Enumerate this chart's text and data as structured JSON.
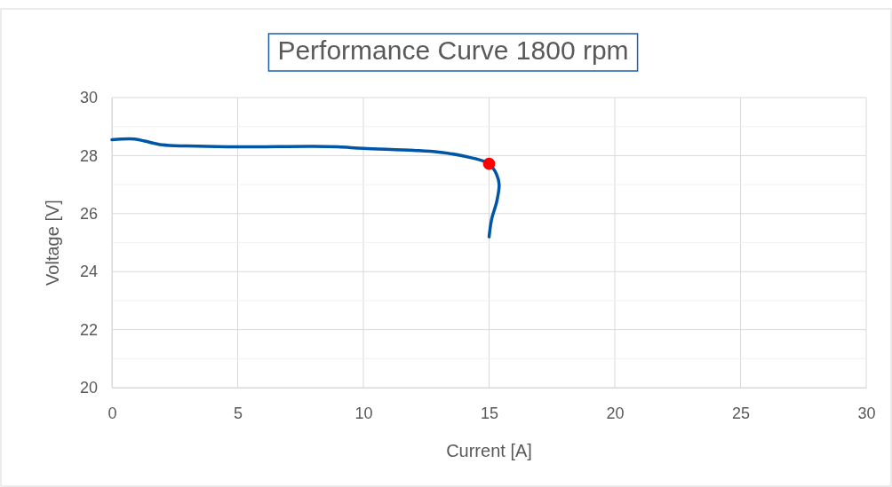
{
  "chart_data": {
    "type": "line",
    "title": "Performance Curve 1800 rpm",
    "xlabel": "Current [A]",
    "ylabel": "Voltage [V]",
    "xlim": [
      0,
      30
    ],
    "xticks": [
      0,
      5,
      10,
      15,
      20,
      25,
      30
    ],
    "ylim": [
      20,
      30
    ],
    "yticks": [
      20,
      {
        "value": 21,
        "label": null
      },
      22,
      {
        "value": 23,
        "label": null
      },
      24,
      {
        "value": 25,
        "label": null
      },
      26,
      {
        "value": 27,
        "label": null
      },
      28,
      {
        "value": 29,
        "label": null
      },
      30
    ],
    "grid": true,
    "series": [
      {
        "color": "#0056a6",
        "marker": "none",
        "line_style": "solid",
        "x": [
          0,
          0.9,
          1.3,
          2,
          3,
          5,
          8,
          9,
          10,
          12,
          13,
          14,
          15,
          15.3,
          15.4,
          15.3,
          15.1,
          15
        ],
        "values": [
          28.55,
          28.57,
          28.5,
          28.37,
          28.33,
          28.3,
          28.32,
          28.3,
          28.25,
          28.18,
          28.12,
          27.98,
          27.72,
          27.35,
          27.0,
          26.4,
          25.8,
          25.2
        ]
      },
      {
        "type": "scatter",
        "color": "#ff0000",
        "marker": "circle",
        "x": [
          15
        ],
        "values": [
          27.72
        ]
      }
    ]
  }
}
